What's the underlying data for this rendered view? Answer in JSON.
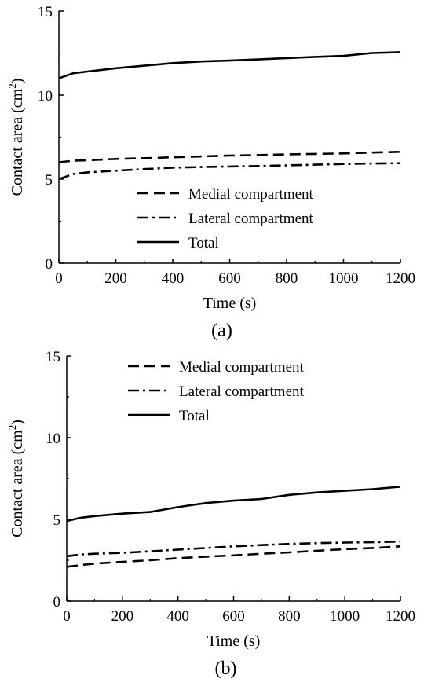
{
  "chart_data": [
    {
      "type": "line",
      "panel_label": "(a)",
      "xlabel": "Time (s)",
      "ylabel": "Contact area (cm",
      "ylabel_sup": "2",
      "ylabel_end": ")",
      "xlim": [
        0,
        1200
      ],
      "ylim": [
        0,
        15
      ],
      "xticks": [
        "0",
        "200",
        "400",
        "600",
        "800",
        "1000",
        "1200"
      ],
      "yticks": [
        "0",
        "5",
        "10",
        "15"
      ],
      "legend_position": "lower-right",
      "series": [
        {
          "name": "Medial compartment",
          "style": "dashed",
          "x": [
            0,
            50,
            100,
            200,
            300,
            400,
            500,
            600,
            700,
            800,
            900,
            1000,
            1100,
            1200
          ],
          "y": [
            6.0,
            6.1,
            6.12,
            6.2,
            6.25,
            6.3,
            6.35,
            6.4,
            6.43,
            6.47,
            6.5,
            6.53,
            6.58,
            6.62
          ]
        },
        {
          "name": "Lateral compartment",
          "style": "dashdot",
          "x": [
            0,
            50,
            100,
            200,
            300,
            400,
            500,
            600,
            700,
            800,
            900,
            1000,
            1100,
            1200
          ],
          "y": [
            5.0,
            5.3,
            5.4,
            5.5,
            5.6,
            5.68,
            5.72,
            5.75,
            5.78,
            5.82,
            5.86,
            5.9,
            5.93,
            5.95
          ]
        },
        {
          "name": "Total",
          "style": "solid",
          "x": [
            0,
            50,
            100,
            200,
            300,
            400,
            500,
            600,
            700,
            800,
            900,
            1000,
            1100,
            1200
          ],
          "y": [
            11.0,
            11.3,
            11.4,
            11.6,
            11.75,
            11.9,
            12.0,
            12.05,
            12.12,
            12.2,
            12.27,
            12.33,
            12.5,
            12.55
          ]
        }
      ]
    },
    {
      "type": "line",
      "panel_label": "(b)",
      "xlabel": "Time (s)",
      "ylabel": "Contact area (cm",
      "ylabel_sup": "2",
      "ylabel_end": ")",
      "xlim": [
        0,
        1200
      ],
      "ylim": [
        0,
        15
      ],
      "xticks": [
        "0",
        "200",
        "400",
        "600",
        "800",
        "1000",
        "1200"
      ],
      "yticks": [
        "0",
        "5",
        "10",
        "15"
      ],
      "legend_position": "top-center",
      "series": [
        {
          "name": "Medial compartment",
          "style": "dashed",
          "x": [
            0,
            50,
            100,
            200,
            300,
            400,
            500,
            600,
            700,
            800,
            900,
            1000,
            1100,
            1200
          ],
          "y": [
            2.1,
            2.2,
            2.3,
            2.4,
            2.5,
            2.63,
            2.72,
            2.8,
            2.9,
            2.98,
            3.08,
            3.18,
            3.25,
            3.35
          ]
        },
        {
          "name": "Lateral compartment",
          "style": "dashdot",
          "x": [
            0,
            50,
            100,
            200,
            300,
            400,
            500,
            600,
            700,
            800,
            900,
            1000,
            1100,
            1200
          ],
          "y": [
            2.75,
            2.85,
            2.9,
            2.95,
            3.05,
            3.15,
            3.25,
            3.35,
            3.43,
            3.5,
            3.55,
            3.58,
            3.6,
            3.65
          ]
        },
        {
          "name": "Total",
          "style": "solid",
          "x": [
            0,
            50,
            100,
            200,
            300,
            400,
            500,
            600,
            700,
            800,
            900,
            1000,
            1100,
            1200
          ],
          "y": [
            4.9,
            5.1,
            5.2,
            5.35,
            5.45,
            5.75,
            6.0,
            6.15,
            6.25,
            6.5,
            6.65,
            6.75,
            6.85,
            7.0
          ]
        }
      ]
    }
  ]
}
